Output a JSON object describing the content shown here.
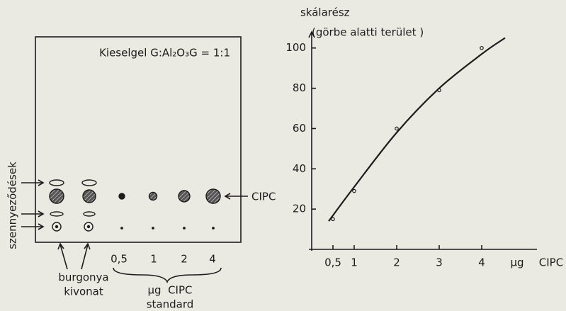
{
  "diagram": {
    "plate_label": "Kieselgel G:Al₂O₃G = 1:1",
    "side_label": "szennyeződések",
    "spot_label": "CIPC",
    "standards": [
      "0,5",
      "1",
      "2",
      "4"
    ],
    "sample_label": [
      "burgonya",
      "kivonat"
    ],
    "standard_label": [
      "μg  CIPC",
      "standard"
    ]
  },
  "chart_data": {
    "type": "line",
    "y_label": [
      "skálarész",
      "(görbe alatti terület )"
    ],
    "x_label": [
      "μg",
      "CIPC"
    ],
    "xlim": [
      0,
      5.3
    ],
    "ylim": [
      0,
      108
    ],
    "xticks": [
      {
        "value": 0.5,
        "label": "0,5"
      },
      1,
      2,
      3,
      4
    ],
    "yticks": [
      20,
      40,
      60,
      80,
      100
    ],
    "series": [
      {
        "style": "line",
        "color": "#1c1c1c",
        "x": [
          0.4,
          1,
          2,
          3,
          4,
          4.55
        ],
        "values": [
          14,
          31,
          58,
          80,
          97,
          105
        ]
      },
      {
        "style": "markers",
        "color": "#1c1c1c",
        "x": [
          0.5,
          1,
          2,
          3,
          4
        ],
        "values": [
          15,
          29,
          60,
          79,
          100
        ]
      }
    ]
  }
}
